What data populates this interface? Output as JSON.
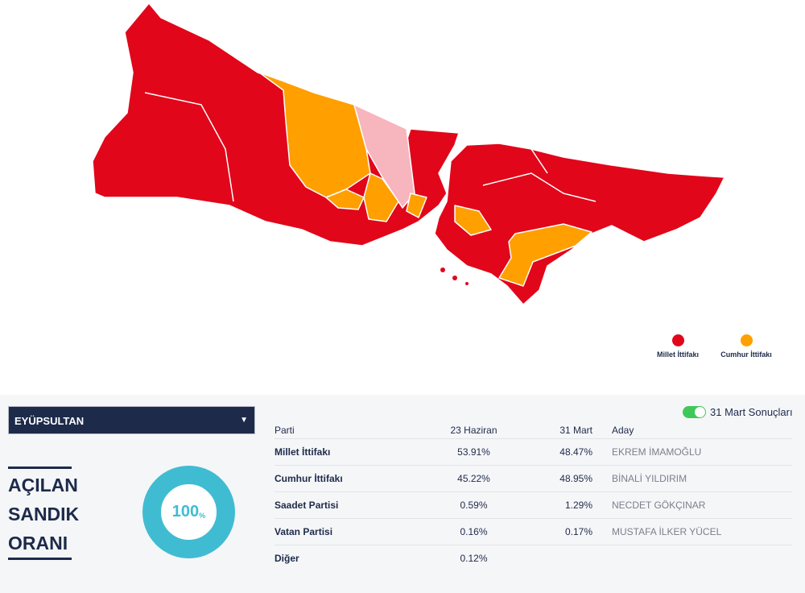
{
  "colors": {
    "millet": "#e1061a",
    "cumhur": "#ff9f00",
    "pink": "#f7b5bd",
    "navy": "#1d2a4a",
    "ring": "#40bcd2",
    "toggle": "#3fc85a"
  },
  "legend": [
    {
      "label": "Millet İttifakı",
      "color": "#e1061a"
    },
    {
      "label": "Cumhur İttifakı",
      "color": "#ff9f00"
    }
  ],
  "district_select": {
    "value": "EYÜPSULTAN",
    "icon": "caret-down-icon"
  },
  "turnout": {
    "title_lines": [
      "AÇILAN",
      "SANDIK",
      "ORANI"
    ],
    "value": "100",
    "unit": "%",
    "fraction": 1.0
  },
  "toggle": {
    "label": "31 Mart Sonuçları",
    "on": true
  },
  "table": {
    "headers": [
      "Parti",
      "23 Haziran",
      "31 Mart",
      "Aday"
    ],
    "rows": [
      {
        "party": "Millet İttifakı",
        "jun23": "53.91%",
        "mar31": "48.47%",
        "candidate": "EKREM İMAMOĞLU"
      },
      {
        "party": "Cumhur İttifakı",
        "jun23": "45.22%",
        "mar31": "48.95%",
        "candidate": "BİNALİ YILDIRIM"
      },
      {
        "party": "Saadet Partisi",
        "jun23": "0.59%",
        "mar31": "1.29%",
        "candidate": "NECDET GÖKÇINAR"
      },
      {
        "party": "Vatan Partisi",
        "jun23": "0.16%",
        "mar31": "0.17%",
        "candidate": "MUSTAFA İLKER YÜCEL"
      },
      {
        "party": "Diğer",
        "jun23": "0.12%",
        "mar31": "",
        "candidate": ""
      }
    ]
  }
}
